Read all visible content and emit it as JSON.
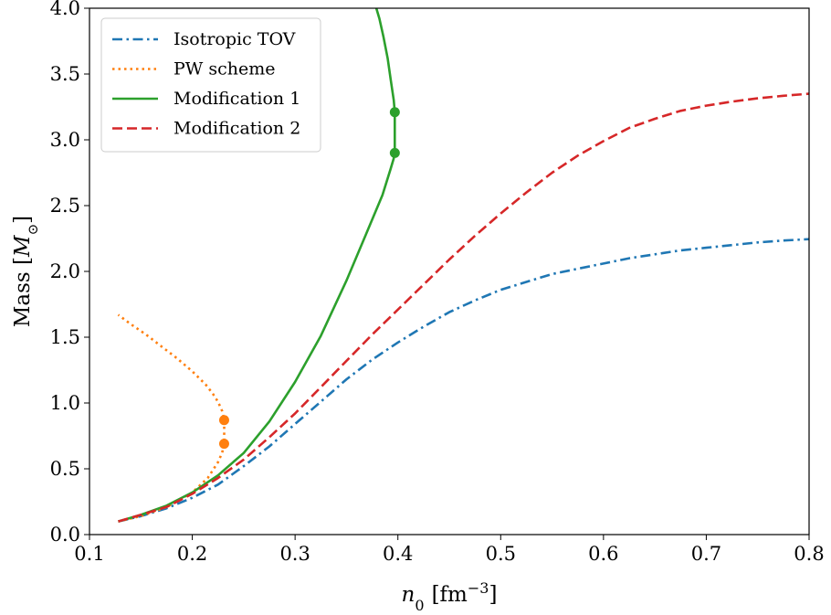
{
  "chart_data": {
    "type": "line",
    "xlabel_var": "n",
    "xlabel_sub": "0",
    "xlabel_unit_open": "[fm",
    "xlabel_unit_exp": "−3",
    "xlabel_unit_close": "]",
    "ylabel_text": "Mass [",
    "ylabel_var": "M",
    "ylabel_sub": "⊙",
    "ylabel_close": "]",
    "xlim": [
      0.1,
      0.8
    ],
    "ylim": [
      0.0,
      4.0
    ],
    "xticks": [
      0.1,
      0.2,
      0.3,
      0.4,
      0.5,
      0.6,
      0.7,
      0.8
    ],
    "xtick_labels": [
      "0.1",
      "0.2",
      "0.3",
      "0.4",
      "0.5",
      "0.6",
      "0.7",
      "0.8"
    ],
    "yticks": [
      0.0,
      0.5,
      1.0,
      1.5,
      2.0,
      2.5,
      3.0,
      3.5,
      4.0
    ],
    "ytick_labels": [
      "0.0",
      "0.5",
      "1.0",
      "1.5",
      "2.0",
      "2.5",
      "3.0",
      "3.5",
      "4.0"
    ],
    "grid": false,
    "legend_position": "top-left",
    "series": [
      {
        "name": "Isotropic TOV",
        "color": "#1f77b4",
        "style": "dashdot",
        "x": [
          0.128,
          0.15,
          0.175,
          0.2,
          0.225,
          0.25,
          0.275,
          0.3,
          0.325,
          0.35,
          0.375,
          0.4,
          0.425,
          0.45,
          0.475,
          0.5,
          0.525,
          0.55,
          0.575,
          0.6,
          0.625,
          0.65,
          0.675,
          0.7,
          0.725,
          0.75,
          0.775,
          0.8
        ],
        "y": [
          0.1,
          0.14,
          0.2,
          0.28,
          0.38,
          0.52,
          0.67,
          0.84,
          1.01,
          1.18,
          1.33,
          1.46,
          1.58,
          1.69,
          1.78,
          1.86,
          1.92,
          1.98,
          2.02,
          2.06,
          2.1,
          2.13,
          2.16,
          2.18,
          2.2,
          2.22,
          2.235,
          2.245
        ]
      },
      {
        "name": "PW scheme",
        "color": "#ff7f0e",
        "style": "dotted",
        "x": [
          0.128,
          0.15,
          0.175,
          0.2,
          0.215,
          0.225,
          0.229,
          0.231,
          0.231,
          0.229,
          0.225,
          0.22,
          0.213,
          0.2,
          0.185,
          0.17,
          0.155,
          0.14,
          0.128
        ],
        "y": [
          0.1,
          0.14,
          0.21,
          0.32,
          0.43,
          0.55,
          0.62,
          0.69,
          0.87,
          0.94,
          1.01,
          1.07,
          1.14,
          1.24,
          1.34,
          1.43,
          1.52,
          1.6,
          1.67
        ],
        "markers": [
          {
            "x": 0.231,
            "y": 0.69
          },
          {
            "x": 0.231,
            "y": 0.87
          }
        ]
      },
      {
        "name": "Modification 1",
        "color": "#2ca02c",
        "style": "solid",
        "x": [
          0.128,
          0.15,
          0.175,
          0.2,
          0.225,
          0.25,
          0.275,
          0.3,
          0.325,
          0.35,
          0.37,
          0.385,
          0.393,
          0.396,
          0.397,
          0.397,
          0.396,
          0.393,
          0.39,
          0.386,
          0.382,
          0.379
        ],
        "y": [
          0.1,
          0.15,
          0.22,
          0.32,
          0.45,
          0.62,
          0.86,
          1.16,
          1.51,
          1.93,
          2.3,
          2.58,
          2.78,
          2.86,
          2.9,
          3.21,
          3.3,
          3.46,
          3.62,
          3.78,
          3.92,
          4.0
        ],
        "markers": [
          {
            "x": 0.397,
            "y": 2.9
          },
          {
            "x": 0.397,
            "y": 3.21
          }
        ]
      },
      {
        "name": "Modification 2",
        "color": "#d62728",
        "style": "dashed",
        "x": [
          0.128,
          0.15,
          0.175,
          0.2,
          0.225,
          0.25,
          0.275,
          0.3,
          0.325,
          0.35,
          0.375,
          0.4,
          0.425,
          0.45,
          0.475,
          0.5,
          0.525,
          0.55,
          0.575,
          0.6,
          0.625,
          0.65,
          0.675,
          0.7,
          0.725,
          0.75,
          0.775,
          0.8
        ],
        "y": [
          0.1,
          0.15,
          0.21,
          0.31,
          0.43,
          0.57,
          0.74,
          0.92,
          1.12,
          1.32,
          1.52,
          1.71,
          1.9,
          2.09,
          2.27,
          2.44,
          2.6,
          2.75,
          2.88,
          2.99,
          3.09,
          3.16,
          3.22,
          3.26,
          3.29,
          3.315,
          3.335,
          3.35
        ]
      }
    ]
  }
}
